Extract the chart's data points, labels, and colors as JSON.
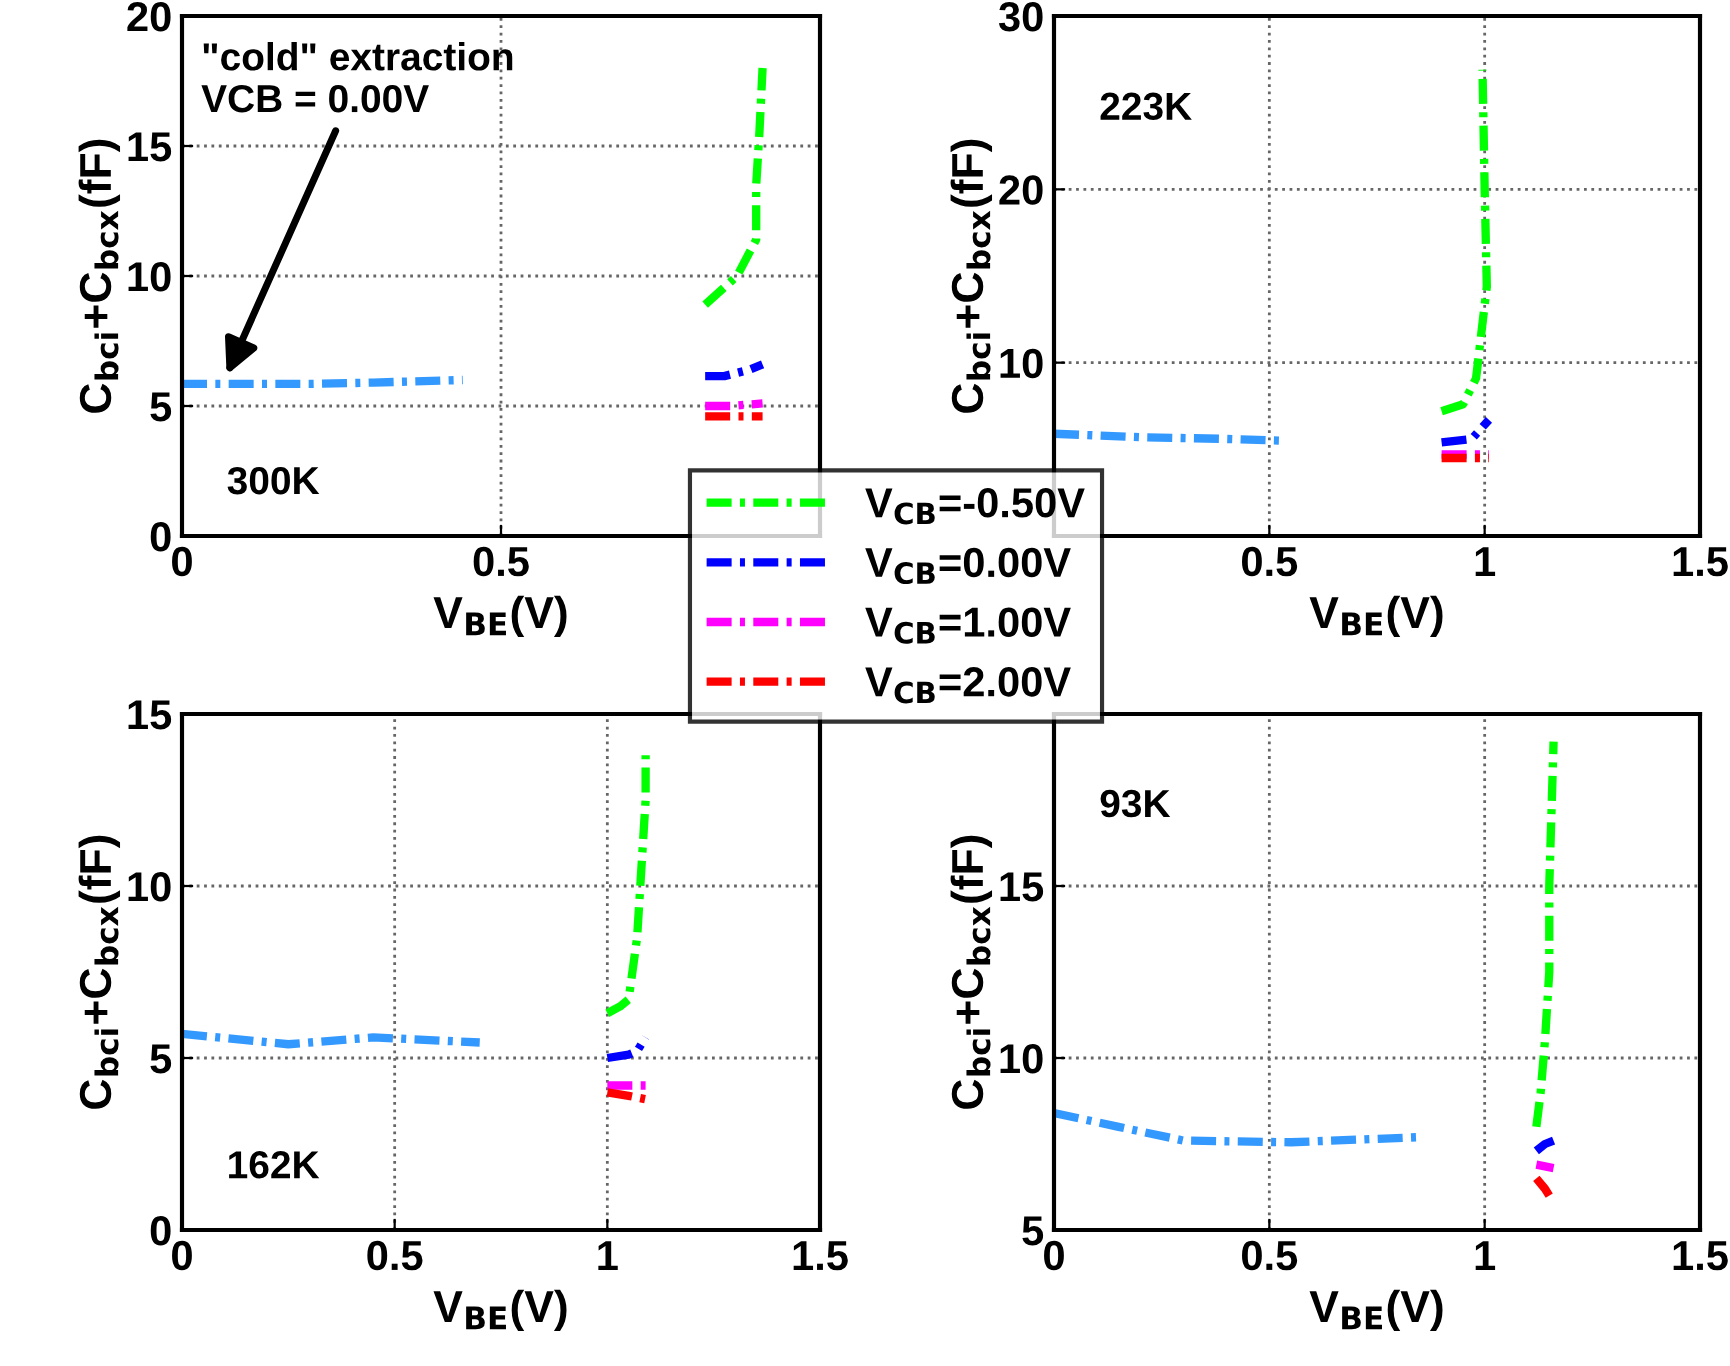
{
  "chart_data": [
    {
      "type": "line",
      "xlabel": "V$_{BE}$(V)",
      "ylabel": "C$_{bci}$+C$_{bcx}$(fF)",
      "xlim": [
        0,
        1
      ],
      "ylim": [
        0,
        20
      ],
      "xticks": [
        0,
        0.5,
        {
          "value": 1,
          "label": null
        }
      ],
      "yticks": [
        0,
        5,
        10,
        15,
        20
      ],
      "grid": true,
      "line_style": "dashdot",
      "legend": "bottom right",
      "annotations": [
        "300K",
        {
          "text": "\"cold\" extraction\nVCB = 0.00V",
          "x": 0.07,
          "y": 6.2
        }
      ],
      "series": [
        {
          "color": "#3399ff",
          "x": [
            0,
            0.1,
            0.2,
            0.3,
            0.44
          ],
          "values": [
            5.85,
            5.85,
            5.85,
            5.9,
            6.0
          ]
        },
        {
          "name": "V$_{CB}$=-0.50V",
          "color": "#00ff00",
          "x": [
            0.82,
            0.87,
            0.9,
            0.9,
            0.905,
            0.91
          ],
          "values": [
            8.9,
            10.0,
            11.4,
            13.5,
            15.5,
            18.0
          ]
        },
        {
          "name": "V$_{CB}$=0.00V",
          "color": "#0000ff",
          "x": [
            0.82,
            0.85,
            0.89,
            0.91
          ],
          "values": [
            6.15,
            6.15,
            6.4,
            6.6
          ]
        },
        {
          "name": "V$_{CB}$=1.00V",
          "color": "#ff00ff",
          "x": [
            0.82,
            0.86,
            0.91
          ],
          "values": [
            5.0,
            5.0,
            5.1
          ]
        },
        {
          "name": "V$_{CB}$=2.00V",
          "color": "#ff0000",
          "x": [
            0.82,
            0.86,
            0.91
          ],
          "values": [
            4.6,
            4.6,
            4.6
          ]
        }
      ]
    },
    {
      "type": "line",
      "xlabel": "V$_{BE}$(V)",
      "ylabel": "C$_{bci}$+C$_{bcx}$(fF)",
      "xlim": [
        0,
        1.5
      ],
      "ylim": [
        0,
        30
      ],
      "xticks": [
        {
          "value": 0,
          "label": null
        },
        0.5,
        1,
        1.5
      ],
      "yticks": [
        {
          "value": 0,
          "label": null
        },
        10,
        20,
        30
      ],
      "grid": true,
      "line_style": "dashdot",
      "annotations": [
        "223K"
      ],
      "series": [
        {
          "color": "#3399ff",
          "x": [
            0,
            0.2,
            0.4,
            0.53
          ],
          "values": [
            5.9,
            5.7,
            5.6,
            5.5
          ]
        },
        {
          "color": "#00ff00",
          "x": [
            0.9,
            0.95,
            0.98,
            1.005,
            1.0,
            0.995
          ],
          "values": [
            7.2,
            7.6,
            9.1,
            14.4,
            20,
            26.9
          ]
        },
        {
          "color": "#0000ff",
          "x": [
            0.9,
            0.97,
            1.01
          ],
          "values": [
            5.4,
            5.6,
            6.7
          ]
        },
        {
          "color": "#ff00ff",
          "x": [
            0.9,
            0.96,
            1.01
          ],
          "values": [
            4.7,
            4.7,
            4.7
          ]
        },
        {
          "color": "#ff0000",
          "x": [
            0.9,
            0.96,
            1.01
          ],
          "values": [
            4.5,
            4.5,
            4.5
          ]
        }
      ]
    },
    {
      "type": "line",
      "xlabel": "V$_{BE}$(V)",
      "ylabel": "C$_{bci}$+C$_{bcx}$(fF)",
      "xlim": [
        0,
        1.5
      ],
      "ylim": [
        0,
        15
      ],
      "xticks": [
        0,
        0.5,
        1,
        1.5
      ],
      "yticks": [
        0,
        5,
        10,
        15
      ],
      "grid": true,
      "line_style": "dashdot",
      "annotations": [
        "162K"
      ],
      "series": [
        {
          "color": "#3399ff",
          "x": [
            0,
            0.25,
            0.45,
            0.7
          ],
          "values": [
            5.7,
            5.4,
            5.6,
            5.45
          ]
        },
        {
          "color": "#00ff00",
          "x": [
            1.0,
            1.03,
            1.05,
            1.07,
            1.08,
            1.09,
            1.09
          ],
          "values": [
            6.3,
            6.5,
            6.7,
            8.5,
            10.5,
            12.5,
            13.8
          ]
        },
        {
          "color": "#0000ff",
          "x": [
            1.0,
            1.05,
            1.07,
            1.09
          ],
          "values": [
            5.0,
            5.1,
            5.2,
            5.6
          ]
        },
        {
          "color": "#ff00ff",
          "x": [
            1.0,
            1.05,
            1.09
          ],
          "values": [
            4.2,
            4.2,
            4.2
          ]
        },
        {
          "color": "#ff0000",
          "x": [
            1.0,
            1.05,
            1.09
          ],
          "values": [
            4.0,
            3.9,
            3.8
          ]
        }
      ]
    },
    {
      "type": "line",
      "xlabel": "V$_{BE}$(V)",
      "ylabel": "C$_{bci}$+C$_{bcx}$(fF)",
      "xlim": [
        0,
        1.5
      ],
      "ylim": [
        5,
        20
      ],
      "xticks": [
        0,
        0.5,
        1,
        1.5
      ],
      "yticks": [
        5,
        10,
        15
      ],
      "grid": true,
      "line_style": "dashdot",
      "annotations": [
        "93K"
      ],
      "series": [
        {
          "color": "#3399ff",
          "x": [
            0,
            0.15,
            0.3,
            0.55,
            0.85
          ],
          "values": [
            8.4,
            8.0,
            7.6,
            7.55,
            7.7
          ]
        },
        {
          "color": "#00ff00",
          "x": [
            1.12,
            1.13,
            1.14,
            1.15,
            1.15,
            1.16
          ],
          "values": [
            8.0,
            9.0,
            10.5,
            12.5,
            15.0,
            19.2
          ]
        },
        {
          "color": "#0000ff",
          "x": [
            1.12,
            1.14,
            1.16
          ],
          "values": [
            7.3,
            7.5,
            7.6
          ]
        },
        {
          "color": "#ff00ff",
          "x": [
            1.12,
            1.16
          ],
          "values": [
            6.9,
            6.8
          ]
        },
        {
          "color": "#ff0000",
          "x": [
            1.12,
            1.14,
            1.15
          ],
          "values": [
            6.5,
            6.2,
            6.0
          ]
        }
      ]
    }
  ]
}
